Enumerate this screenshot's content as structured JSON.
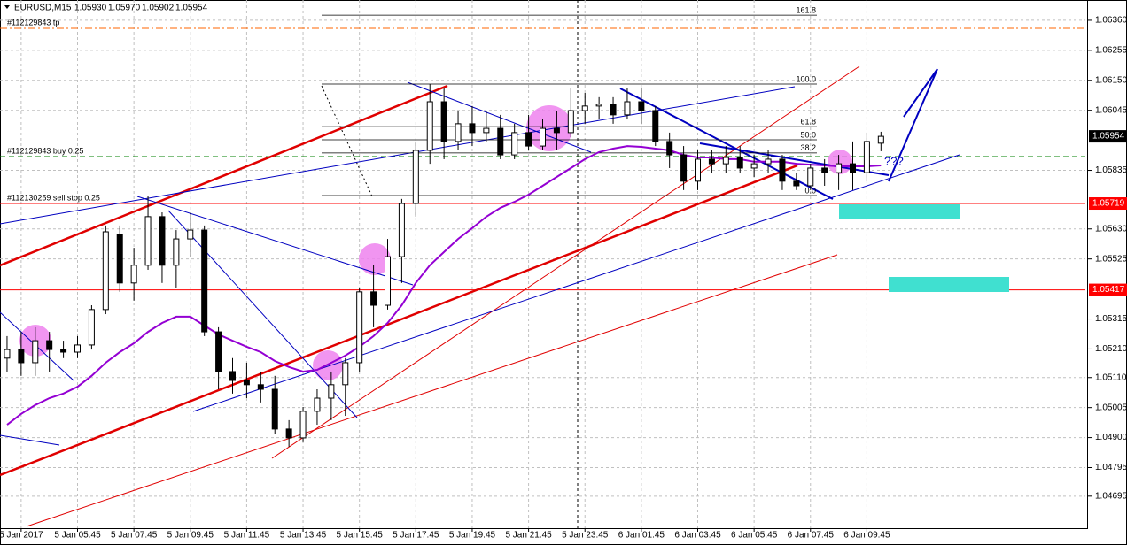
{
  "chart_data": {
    "type": "candlestick",
    "title": "EURUSD,M15",
    "title_prices": [
      "1.05930",
      "1.05970",
      "1.05902",
      "1.05954"
    ],
    "open": [
      1.05178,
      1.05208,
      1.05162,
      1.05239,
      1.05208,
      1.05199,
      1.05224,
      1.05348,
      1.05611,
      1.05441,
      1.05503,
      1.05673,
      1.05503,
      1.05595,
      1.05626,
      1.0527,
      1.05131,
      1.051,
      1.05085,
      1.05069,
      1.0493,
      1.04899,
      1.04992,
      1.05038,
      1.05085,
      1.05162,
      1.0541,
      1.05363,
      1.05533,
      1.05719,
      1.05905,
      1.06075,
      1.05936,
      1.05998,
      1.05967,
      1.05982,
      1.05889,
      1.05967,
      1.0592,
      1.05982,
      1.05967,
      1.06044,
      1.0606,
      1.06066,
      1.06029,
      1.06075,
      1.06044,
      1.05936,
      1.05889,
      1.05797,
      1.05874,
      1.05858,
      1.0588,
      1.05843,
      1.05858,
      1.05874,
      1.05797,
      1.05781,
      1.05843,
      1.05827,
      1.05858,
      1.05827,
      1.0593
    ],
    "high": [
      1.05255,
      1.0527,
      1.05286,
      1.0527,
      1.05239,
      1.05255,
      1.05363,
      1.05642,
      1.05642,
      1.05564,
      1.05744,
      1.05688,
      1.05626,
      1.05688,
      1.05642,
      1.05286,
      1.05178,
      1.05162,
      1.05131,
      1.05116,
      1.04961,
      1.05007,
      1.05069,
      1.05131,
      1.05178,
      1.05425,
      1.05503,
      1.05595,
      1.05735,
      1.05936,
      1.06137,
      1.06122,
      1.06044,
      1.0606,
      1.06044,
      1.06029,
      1.05998,
      1.06029,
      1.06013,
      1.06044,
      1.06122,
      1.06106,
      1.06091,
      1.06091,
      1.06122,
      1.06122,
      1.0606,
      1.05967,
      1.0592,
      1.05905,
      1.05905,
      1.0592,
      1.0592,
      1.05889,
      1.05905,
      1.05889,
      1.05827,
      1.05858,
      1.05874,
      1.05889,
      1.05936,
      1.05967,
      1.0597
    ],
    "low": [
      1.05131,
      1.05116,
      1.05116,
      1.05131,
      1.05178,
      1.05178,
      1.05208,
      1.05332,
      1.0541,
      1.05379,
      1.05487,
      1.05441,
      1.05425,
      1.05533,
      1.05255,
      1.05069,
      1.05054,
      1.05038,
      1.05023,
      1.04914,
      1.04868,
      1.04884,
      1.04945,
      1.04961,
      1.04976,
      1.05131,
      1.05286,
      1.05348,
      1.05441,
      1.05673,
      1.05858,
      1.05874,
      1.05905,
      1.0592,
      1.05936,
      1.05874,
      1.05874,
      1.05905,
      1.05905,
      1.05905,
      1.05951,
      1.05998,
      1.06013,
      1.05998,
      1.06013,
      1.05998,
      1.0592,
      1.05843,
      1.05766,
      1.05766,
      1.05827,
      1.05827,
      1.05827,
      1.05812,
      1.05827,
      1.05766,
      1.05766,
      1.05766,
      1.05781,
      1.05766,
      1.05766,
      1.05797,
      1.05902
    ],
    "close": [
      1.05208,
      1.05162,
      1.05239,
      1.05208,
      1.05199,
      1.05224,
      1.05348,
      1.0562,
      1.05441,
      1.05503,
      1.05673,
      1.05503,
      1.05595,
      1.05626,
      1.0527,
      1.05131,
      1.051,
      1.05085,
      1.05069,
      1.0493,
      1.04899,
      1.04992,
      1.05038,
      1.05085,
      1.05162,
      1.0541,
      1.05363,
      1.05533,
      1.05719,
      1.05905,
      1.06075,
      1.05936,
      1.05998,
      1.05967,
      1.05982,
      1.05889,
      1.05967,
      1.0592,
      1.05982,
      1.05967,
      1.06044,
      1.0606,
      1.06066,
      1.06029,
      1.06075,
      1.06044,
      1.05936,
      1.05889,
      1.05797,
      1.05874,
      1.05858,
      1.0588,
      1.05843,
      1.05858,
      1.05874,
      1.05797,
      1.05781,
      1.05843,
      1.05827,
      1.05858,
      1.05827,
      1.05936,
      1.05954
    ],
    "bull_color": "#ffffff",
    "bear_color": "#000000",
    "indicator": {
      "type": "line",
      "color": "#9400d3",
      "values": [
        1.04945,
        1.04983,
        1.05014,
        1.05038,
        1.05054,
        1.05078,
        1.05116,
        1.05162,
        1.05199,
        1.0523,
        1.0527,
        1.05301,
        1.05323,
        1.05323,
        1.05292,
        1.05261,
        1.05239,
        1.05218,
        1.05199,
        1.05168,
        1.05147,
        1.05131,
        1.05137,
        1.05162,
        1.05187,
        1.05218,
        1.05255,
        1.05301,
        1.05363,
        1.05441,
        1.05503,
        1.05549,
        1.05595,
        1.05633,
        1.05673,
        1.05704,
        1.05725,
        1.0575,
        1.05781,
        1.05812,
        1.05843,
        1.05874,
        1.05899,
        1.05911,
        1.0592,
        1.05917,
        1.05911,
        1.05905,
        1.05889,
        1.0588,
        1.0588,
        1.05874,
        1.05874,
        1.05865,
        1.05865,
        1.05865,
        1.05858,
        1.05855,
        1.05852,
        1.05849,
        1.05849,
        1.05849,
        1.05852
      ]
    },
    "xlim": [
      -0.5,
      76.5
    ],
    "xticks": [
      {
        "value": 1,
        "label": "5 Jan 2017"
      },
      {
        "value": 5,
        "label": "5 Jan 05:45"
      },
      {
        "value": 9,
        "label": "5 Jan 07:45"
      },
      {
        "value": 13,
        "label": "5 Jan 09:45"
      },
      {
        "value": 17,
        "label": "5 Jan 11:45"
      },
      {
        "value": 21,
        "label": "5 Jan 13:45"
      },
      {
        "value": 25,
        "label": "5 Jan 15:45"
      },
      {
        "value": 29,
        "label": "5 Jan 17:45"
      },
      {
        "value": 33,
        "label": "5 Jan 19:45"
      },
      {
        "value": 37,
        "label": "5 Jan 21:45"
      },
      {
        "value": 41,
        "label": "5 Jan 23:45"
      },
      {
        "value": 45,
        "label": "6 Jan 01:45"
      },
      {
        "value": 49,
        "label": "6 Jan 03:45"
      },
      {
        "value": 53,
        "label": "6 Jan 05:45"
      },
      {
        "value": 57,
        "label": "6 Jan 07:45"
      },
      {
        "value": 61,
        "label": "6 Jan 09:45"
      }
    ],
    "ylim": [
      1.04583,
      1.06431
    ],
    "yticks": [
      {
        "value": 1.0636,
        "label": "1.06360"
      },
      {
        "value": 1.06255,
        "label": "1.06255"
      },
      {
        "value": 1.0615,
        "label": "1.06150"
      },
      {
        "value": 1.06045,
        "label": "1.06045"
      },
      {
        "value": 1.05835,
        "label": "1.05835"
      },
      {
        "value": 1.0563,
        "label": "1.05630"
      },
      {
        "value": 1.05525,
        "label": "1.05525"
      },
      {
        "value": 1.05315,
        "label": "1.05315"
      },
      {
        "value": 1.0521,
        "label": "1.05210"
      },
      {
        "value": 1.0511,
        "label": "1.05110"
      },
      {
        "value": 1.05005,
        "label": "1.05005"
      },
      {
        "value": 1.049,
        "label": "1.04900"
      },
      {
        "value": 1.04795,
        "label": "1.04795"
      },
      {
        "value": 1.04695,
        "label": "1.04695"
      }
    ],
    "grid": true,
    "orders": [
      {
        "label": "#112129843 tp",
        "price": 1.06332,
        "color": "#ff6600",
        "style": "dashdot",
        "axis_label": false
      },
      {
        "label": "#112129843 buy 0.25",
        "price": 1.05883,
        "color": "#008000",
        "style": "dash",
        "axis_label": false
      },
      {
        "label": "#112130259 sell stop 0.25",
        "price": 1.05719,
        "color": "#ff0000",
        "style": "solid",
        "axis_label": true
      }
    ],
    "levels": [
      {
        "price": 1.05417,
        "color": "#ff0000"
      }
    ],
    "fib": {
      "low": 1.05747,
      "high": 1.06137,
      "levels": [
        161.8,
        {
          "value": 100,
          "label": "100.0"
        },
        61.8,
        {
          "value": 50,
          "label": "50.0"
        },
        38.2,
        {
          "value": 0,
          "label": "0.0"
        }
      ]
    },
    "annotation": "???"
  }
}
